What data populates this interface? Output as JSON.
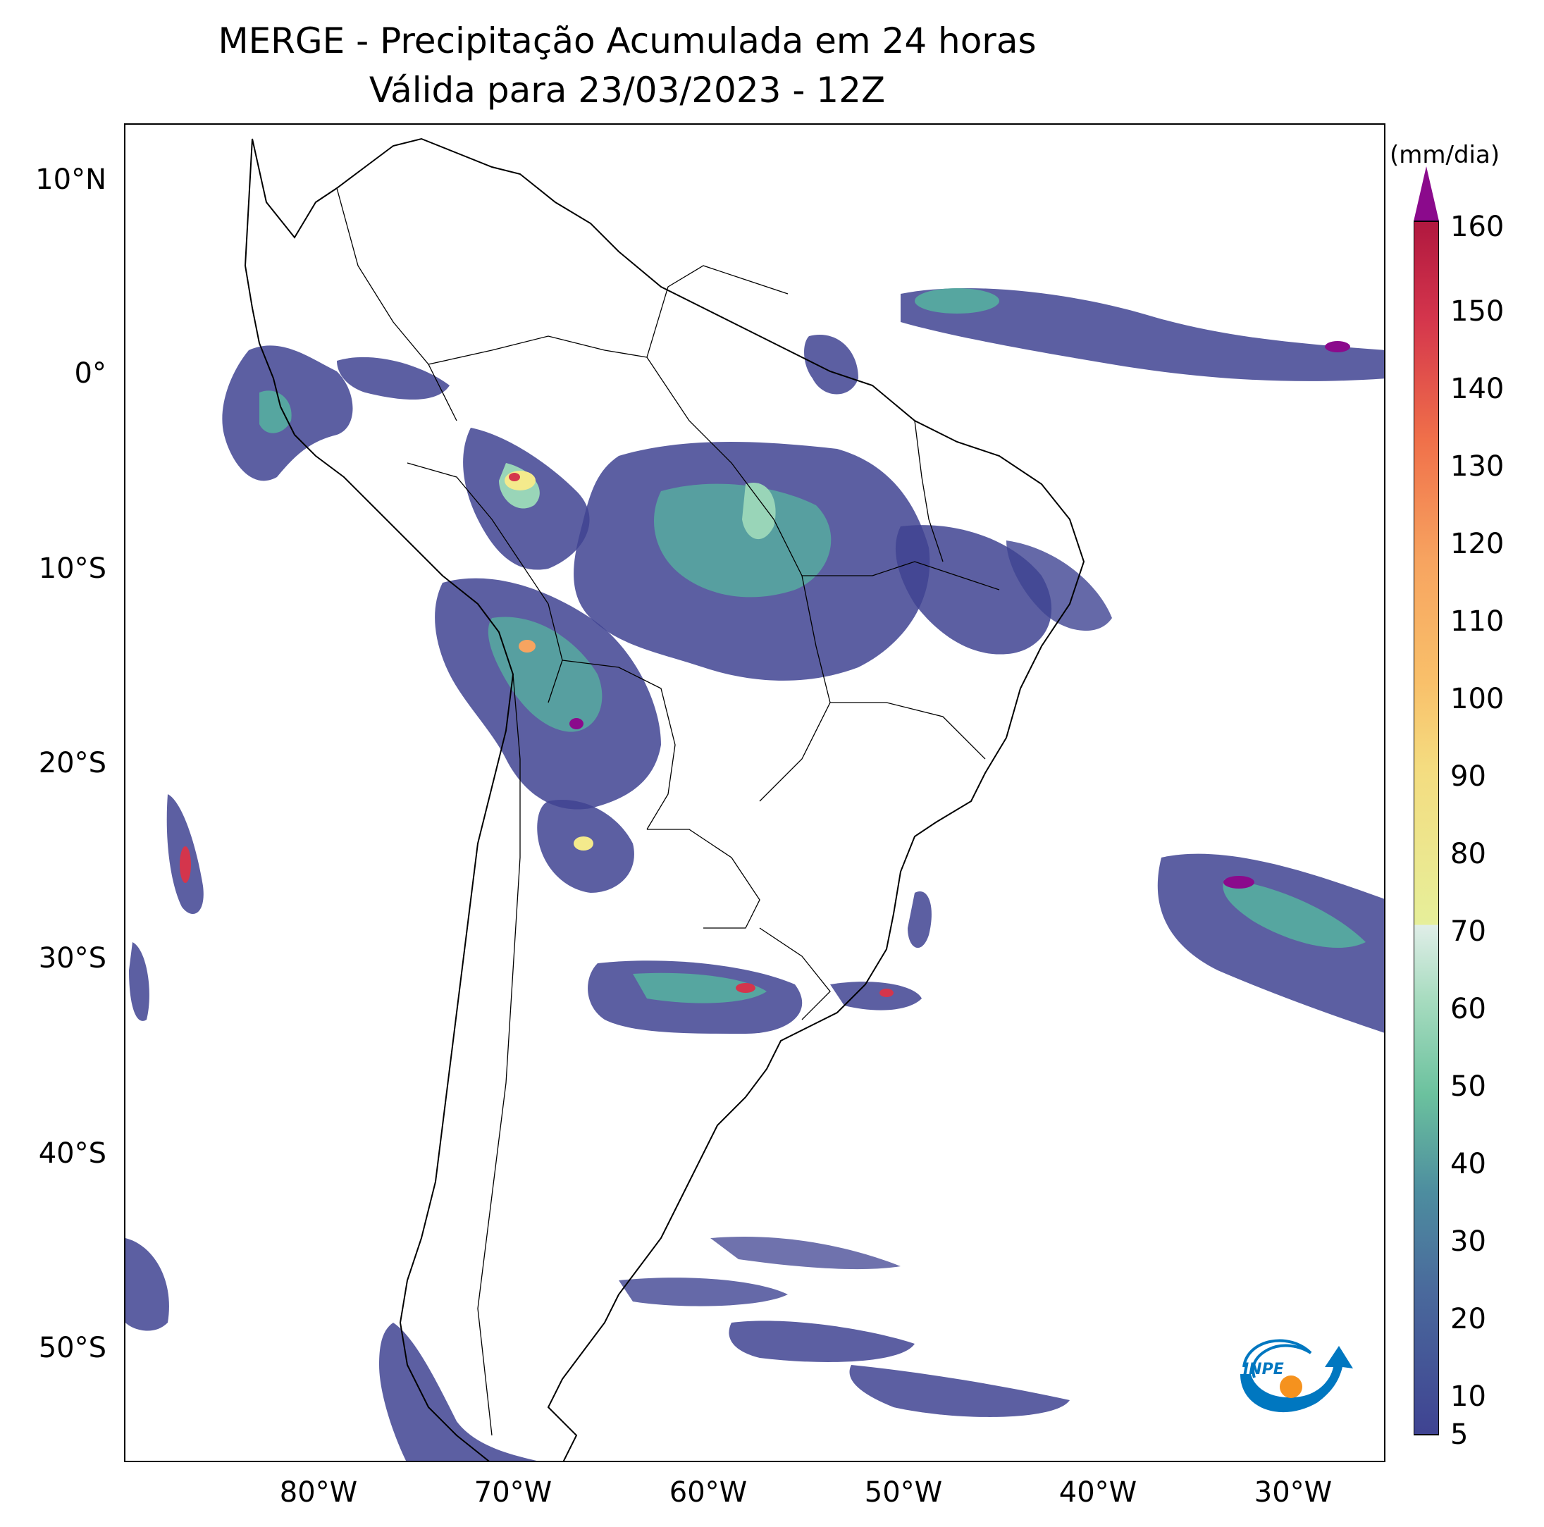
{
  "title": {
    "line1": "MERGE - Precipitação Acumulada em 24 horas",
    "line2": "Válida para 23/03/2023 - 12Z"
  },
  "map": {
    "lon_range": [
      -90,
      -25
    ],
    "lat_range": [
      -56,
      13
    ],
    "lat_labels": [
      "10°N",
      "0°",
      "10°S",
      "20°S",
      "30°S",
      "40°S",
      "50°S"
    ],
    "lon_labels": [
      "80°W",
      "70°W",
      "60°W",
      "50°W",
      "40°W",
      "30°W"
    ]
  },
  "colorbar": {
    "unit": "(mm/dia)",
    "tick_labels": [
      "5",
      "10",
      "20",
      "30",
      "40",
      "50",
      "60",
      "70",
      "80",
      "90",
      "100",
      "110",
      "120",
      "130",
      "140",
      "150",
      "160"
    ],
    "colors": {
      "low": "#3f4392",
      "mid_low": "#56a6a0",
      "mid": "#99d5b8",
      "light": "#e0eee8",
      "yellow": "#f4ea8c",
      "orange": "#f7a460",
      "red": "#d4354c",
      "max": "#8b0a8c"
    }
  },
  "logo": {
    "text": "INPE",
    "blue": "#0077c0",
    "orange": "#f5921e"
  }
}
